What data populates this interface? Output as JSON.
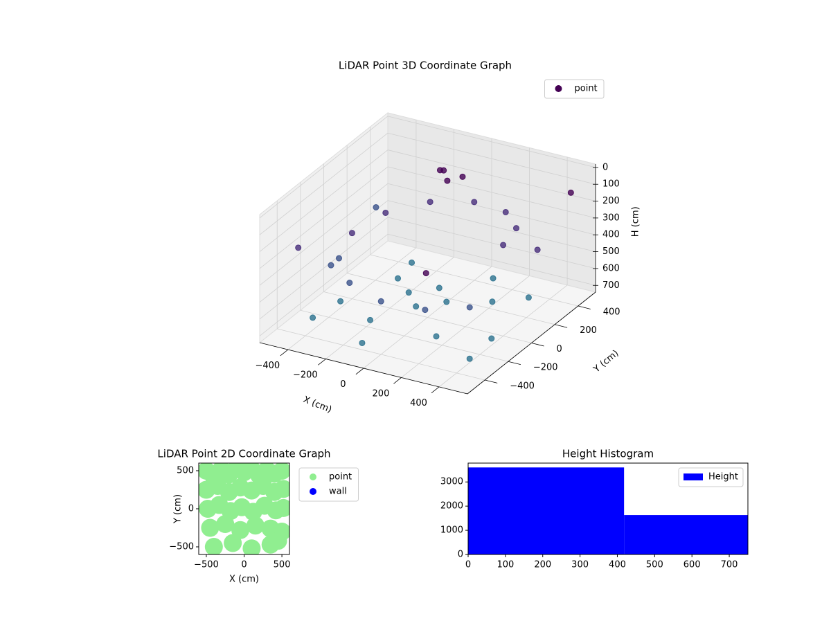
{
  "chart_data": [
    {
      "type": "scatter3d",
      "title": "LiDAR Point 3D Coordinate Graph",
      "xlabel": "X (cm)",
      "ylabel": "Y (cm)",
      "zlabel": "H (cm)",
      "xlim": [
        -550,
        550
      ],
      "ylim": [
        -550,
        550
      ],
      "zlim": [
        -20,
        740
      ],
      "z_inverted": true,
      "xticks": [
        {
          "value": -400,
          "label": "−400"
        },
        {
          "value": -200,
          "label": "−200"
        },
        0,
        200,
        400
      ],
      "yticks": [
        {
          "value": -400,
          "label": "−400"
        },
        {
          "value": -200,
          "label": "−200"
        },
        0,
        200,
        400
      ],
      "zticks": [
        0,
        100,
        200,
        300,
        400,
        500,
        600,
        700
      ],
      "grid": true,
      "legend": "upper right",
      "colormap": [
        "#440154",
        "#472d7b",
        "#3b528b",
        "#2c728e"
      ],
      "series": [
        {
          "name": "point",
          "color": "#440154",
          "x": [
            400,
            346,
            200,
            0,
            -200,
            -346,
            -400,
            -346,
            -200,
            0,
            200,
            346,
            100,
            0,
            -100,
            0,
            250,
            -250,
            -150,
            200,
            400,
            -400,
            100,
            -100,
            350,
            -300,
            -100,
            -50,
            -150,
            0,
            -500,
            450,
            -300,
            500,
            -520,
            520,
            300,
            -450
          ],
          "y": [
            0,
            200,
            346,
            400,
            346,
            200,
            0,
            -200,
            -346,
            -400,
            -346,
            -200,
            0,
            100,
            0,
            -100,
            150,
            150,
            -250,
            -250,
            -100,
            -100,
            400,
            -400,
            300,
            350,
            300,
            250,
            350,
            300,
            -300,
            500,
            -500,
            -450,
            400,
            100,
            -500,
            -100
          ],
          "h": [
            200,
            225,
            250,
            275,
            300,
            325,
            350,
            375,
            400,
            425,
            450,
            475,
            620,
            620,
            620,
            620,
            660,
            660,
            660,
            660,
            700,
            700,
            700,
            700,
            690,
            690,
            60,
            80,
            100,
            70,
            300,
            150,
            550,
            600,
            450,
            250,
            120,
            500
          ]
        }
      ]
    },
    {
      "type": "scatter",
      "title": "LiDAR Point 2D Coordinate Graph",
      "xlabel": "X (cm)",
      "ylabel": "Y (cm)",
      "xlim": [
        -600,
        600
      ],
      "ylim": [
        -600,
        600
      ],
      "xticks": [
        {
          "value": -500,
          "label": "−500"
        },
        0,
        500
      ],
      "yticks": [
        {
          "value": -500,
          "label": "−500"
        },
        0,
        500
      ],
      "legend": "outside right",
      "series": [
        {
          "name": "point",
          "color": "#90ee90",
          "x": [
            -500,
            -400,
            -300,
            -200,
            -100,
            0,
            100,
            200,
            300,
            400,
            500,
            -500,
            -350,
            -200,
            -50,
            100,
            250,
            400,
            520,
            -480,
            -330,
            -180,
            -30,
            120,
            270,
            420,
            520,
            -450,
            -250,
            -50,
            150,
            350,
            500,
            -400,
            -150,
            100,
            350,
            450
          ],
          "y": [
            500,
            420,
            520,
            450,
            530,
            480,
            520,
            440,
            510,
            460,
            500,
            250,
            300,
            220,
            280,
            240,
            300,
            220,
            260,
            0,
            50,
            -30,
            20,
            -40,
            40,
            -20,
            10,
            -250,
            -200,
            -280,
            -220,
            -260,
            -300,
            -500,
            -450,
            -520,
            -470,
            -420
          ]
        },
        {
          "name": "wall",
          "color": "#0000ff",
          "x": [],
          "y": []
        }
      ]
    },
    {
      "type": "histogram",
      "title": "Height Histogram",
      "bins": [
        0,
        418,
        750
      ],
      "counts": [
        3600,
        1630
      ],
      "color": "#0000ff",
      "xlim": [
        0,
        750
      ],
      "ylim": [
        0,
        3780
      ],
      "xticks": [
        0,
        100,
        200,
        300,
        400,
        500,
        600,
        700
      ],
      "yticks": [
        0,
        1000,
        2000,
        3000
      ],
      "legend": "upper right",
      "name": "Height"
    }
  ]
}
